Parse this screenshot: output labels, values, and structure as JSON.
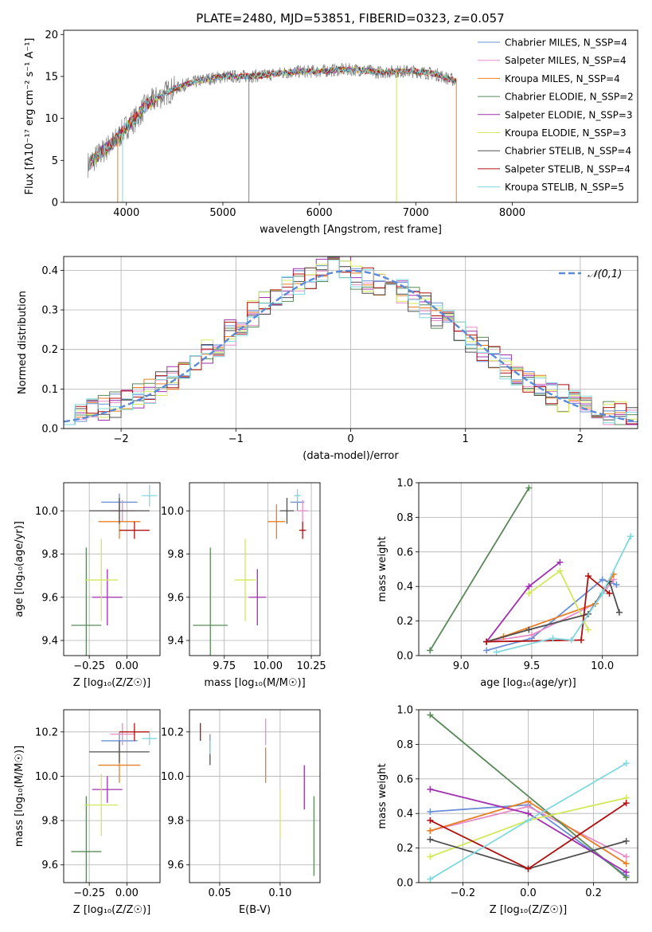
{
  "figure_title": "PLATE=2480, MJD=53851, FIBERID=0323, z=0.057",
  "palette": {
    "Chabrier MILES": "#6b8fd6",
    "Salpeter MILES": "#e88cc8",
    "Kroupa MILES": "#e87f24",
    "Chabrier ELODIE": "#5a8a5a",
    "Salpeter ELODIE": "#a030b0",
    "Kroupa ELODIE": "#d2e85a",
    "Chabrier STELIB": "#505050",
    "Salpeter STELIB": "#b01010",
    "Kroupa STELIB": "#80d8e0",
    "data": "#808080",
    "normal": "#5b8bd8"
  },
  "chart_data": [
    {
      "id": "spectrum",
      "type": "line",
      "title": "PLATE=2480, MJD=53851, FIBERID=0323, z=0.057",
      "xlabel": "wavelength [Angstrom, rest frame]",
      "ylabel": "Flux [fλ10⁻¹⁷ erg cm⁻² s⁻¹ A⁻¹]",
      "xlim": [
        3350,
        9300
      ],
      "ylim": [
        0,
        20.5
      ],
      "xticks": [
        4000,
        5000,
        6000,
        7000,
        8000
      ],
      "yticks": [
        0,
        5,
        10,
        15,
        20
      ],
      "legend_position": "right",
      "legend": [
        "Chabrier MILES, N_SSP=4",
        "Salpeter MILES, N_SSP=4",
        "Kroupa MILES, N_SSP=4",
        "Chabrier ELODIE, N_SSP=2",
        "Salpeter ELODIE, N_SSP=3",
        "Kroupa ELODIE, N_SSP=3",
        "Chabrier STELIB, N_SSP=4",
        "Salpeter STELIB, N_SSP=4",
        "Kroupa STELIB, N_SSP=5"
      ],
      "continuum": {
        "x": [
          3600,
          3700,
          3800,
          3900,
          4000,
          4100,
          4200,
          4400,
          4600,
          4800,
          5000,
          5200,
          5400,
          5600,
          5800,
          6000,
          6200,
          6400,
          6600,
          6800,
          7000,
          7200,
          7400
        ],
        "y": [
          4.5,
          5.5,
          6.5,
          7.5,
          9.0,
          10.0,
          11.5,
          13.0,
          14.0,
          14.6,
          15.0,
          15.0,
          15.1,
          15.4,
          15.6,
          15.6,
          15.8,
          15.8,
          15.5,
          15.6,
          15.6,
          15.3,
          14.5
        ]
      }
    },
    {
      "id": "residuals",
      "type": "line",
      "xlabel": "(data-model)/error",
      "ylabel": "Normed distribution",
      "xlim": [
        -2.5,
        2.5
      ],
      "ylim": [
        0,
        0.435
      ],
      "xticks": [
        -2,
        -1,
        0,
        1,
        2
      ],
      "yticks": [
        0.0,
        0.1,
        0.2,
        0.3,
        0.4
      ],
      "legend": [
        "𝒩(0,1)"
      ],
      "legend_position": "top-right",
      "normal": {
        "mu": 0,
        "sigma": 1
      }
    },
    {
      "id": "age_vs_Z",
      "type": "scatter",
      "xlabel": "Z [log₁₀(Z/Z☉)]",
      "ylabel": "age  [log₁₀(age/yr)]",
      "xlim": [
        -0.42,
        0.22
      ],
      "ylim": [
        9.33,
        10.13
      ],
      "xticks": [
        -0.25,
        0.0
      ],
      "yticks": [
        9.4,
        9.6,
        9.8,
        10.0
      ],
      "points": [
        {
          "model": "Chabrier MILES",
          "x": -0.05,
          "y": 10.04,
          "xerr": 0.12,
          "yerr": 0.04
        },
        {
          "model": "Salpeter MILES",
          "x": -0.03,
          "y": 10.0,
          "xerr": 0.08,
          "yerr": 0.05
        },
        {
          "model": "Kroupa MILES",
          "x": -0.05,
          "y": 9.95,
          "xerr": 0.14,
          "yerr": 0.08
        },
        {
          "model": "Chabrier ELODIE",
          "x": -0.27,
          "y": 9.47,
          "xerr": 0.1,
          "yerr": 0.36
        },
        {
          "model": "Salpeter ELODIE",
          "x": -0.13,
          "y": 9.6,
          "xerr": 0.1,
          "yerr": 0.13
        },
        {
          "model": "Kroupa ELODIE",
          "x": -0.17,
          "y": 9.68,
          "xerr": 0.11,
          "yerr": 0.19
        },
        {
          "model": "Chabrier STELIB",
          "x": -0.05,
          "y": 10.0,
          "xerr": 0.2,
          "yerr": 0.06
        },
        {
          "model": "Salpeter STELIB",
          "x": 0.05,
          "y": 9.91,
          "xerr": 0.1,
          "yerr": 0.04
        },
        {
          "model": "Kroupa STELIB",
          "x": 0.15,
          "y": 10.07,
          "xerr": 0.05,
          "yerr": 0.05
        }
      ]
    },
    {
      "id": "age_vs_mass",
      "type": "scatter",
      "xlabel": "mass [log₁₀(M/M☉)]",
      "xlim": [
        9.55,
        10.3
      ],
      "ylim": [
        9.33,
        10.13
      ],
      "xticks": [
        9.75,
        10.0,
        10.25
      ],
      "yticks": [
        9.4,
        9.6,
        9.8,
        10.0
      ],
      "points": [
        {
          "model": "Chabrier MILES",
          "x": 10.17,
          "y": 10.04,
          "xerr": 0.04,
          "yerr": 0.04
        },
        {
          "model": "Salpeter MILES",
          "x": 10.2,
          "y": 10.0,
          "xerr": 0.03,
          "yerr": 0.05
        },
        {
          "model": "Kroupa MILES",
          "x": 10.05,
          "y": 9.95,
          "xerr": 0.05,
          "yerr": 0.08
        },
        {
          "model": "Chabrier ELODIE",
          "x": 9.67,
          "y": 9.47,
          "xerr": 0.1,
          "yerr": 0.36
        },
        {
          "model": "Salpeter ELODIE",
          "x": 9.94,
          "y": 9.6,
          "xerr": 0.05,
          "yerr": 0.13
        },
        {
          "model": "Kroupa ELODIE",
          "x": 9.87,
          "y": 9.68,
          "xerr": 0.06,
          "yerr": 0.19
        },
        {
          "model": "Chabrier STELIB",
          "x": 10.11,
          "y": 10.0,
          "xerr": 0.04,
          "yerr": 0.06
        },
        {
          "model": "Salpeter STELIB",
          "x": 10.2,
          "y": 9.91,
          "xerr": 0.02,
          "yerr": 0.04
        },
        {
          "model": "Kroupa STELIB",
          "x": 10.17,
          "y": 10.07,
          "xerr": 0.02,
          "yerr": 0.03
        }
      ]
    },
    {
      "id": "weight_vs_age",
      "type": "line",
      "xlabel": "age  [log₁₀(age/yr)]",
      "ylabel": "mass weight",
      "xlim": [
        8.7,
        10.25
      ],
      "ylim": [
        0,
        1.0
      ],
      "xticks": [
        9.0,
        9.5,
        10.0
      ],
      "yticks": [
        0.0,
        0.2,
        0.4,
        0.6,
        0.8,
        1.0
      ],
      "series": [
        {
          "model": "Chabrier MILES",
          "x": [
            9.18,
            9.5,
            10.0,
            10.1
          ],
          "y": [
            0.03,
            0.1,
            0.44,
            0.41
          ]
        },
        {
          "model": "Salpeter MILES",
          "x": [
            9.18,
            9.5,
            9.95,
            10.08
          ],
          "y": [
            0.08,
            0.12,
            0.3,
            0.44
          ]
        },
        {
          "model": "Kroupa MILES",
          "x": [
            9.18,
            9.3,
            9.95,
            10.08
          ],
          "y": [
            0.08,
            0.11,
            0.3,
            0.47
          ]
        },
        {
          "model": "Chabrier ELODIE",
          "x": [
            8.78,
            9.48
          ],
          "y": [
            0.03,
            0.97
          ]
        },
        {
          "model": "Salpeter ELODIE",
          "x": [
            9.18,
            9.48,
            9.7
          ],
          "y": [
            0.08,
            0.4,
            0.54
          ]
        },
        {
          "model": "Kroupa ELODIE",
          "x": [
            9.48,
            9.7,
            9.9
          ],
          "y": [
            0.36,
            0.49,
            0.15
          ]
        },
        {
          "model": "Chabrier STELIB",
          "x": [
            9.18,
            9.48,
            9.9,
            10.05,
            10.12
          ],
          "y": [
            0.08,
            0.15,
            0.24,
            0.43,
            0.25
          ]
        },
        {
          "model": "Salpeter STELIB",
          "x": [
            9.18,
            9.85,
            9.9,
            10.05
          ],
          "y": [
            0.08,
            0.09,
            0.46,
            0.36
          ]
        },
        {
          "model": "Kroupa STELIB",
          "x": [
            9.25,
            9.65,
            9.78,
            10.0,
            10.2
          ],
          "y": [
            0.02,
            0.1,
            0.09,
            0.36,
            0.69
          ]
        }
      ]
    },
    {
      "id": "mass_vs_Z",
      "type": "scatter",
      "xlabel": "Z [log₁₀(Z/Z☉)]",
      "ylabel": "mass [log₁₀(M/M☉)]",
      "xlim": [
        -0.42,
        0.22
      ],
      "ylim": [
        9.52,
        10.3
      ],
      "xticks": [
        -0.25,
        0.0
      ],
      "yticks": [
        9.6,
        9.8,
        10.0,
        10.2
      ],
      "points": [
        {
          "model": "Chabrier MILES",
          "x": -0.05,
          "y": 10.16,
          "xerr": 0.12,
          "yerr": 0.04
        },
        {
          "model": "Salpeter MILES",
          "x": -0.03,
          "y": 10.19,
          "xerr": 0.08,
          "yerr": 0.05
        },
        {
          "model": "Kroupa MILES",
          "x": -0.05,
          "y": 10.05,
          "xerr": 0.14,
          "yerr": 0.08
        },
        {
          "model": "Chabrier ELODIE",
          "x": -0.27,
          "y": 9.66,
          "xerr": 0.1,
          "yerr": 0.25
        },
        {
          "model": "Salpeter ELODIE",
          "x": -0.13,
          "y": 9.94,
          "xerr": 0.1,
          "yerr": 0.06
        },
        {
          "model": "Kroupa ELODIE",
          "x": -0.17,
          "y": 9.87,
          "xerr": 0.11,
          "yerr": 0.14
        },
        {
          "model": "Chabrier STELIB",
          "x": -0.05,
          "y": 10.11,
          "xerr": 0.2,
          "yerr": 0.05
        },
        {
          "model": "Salpeter STELIB",
          "x": 0.05,
          "y": 10.2,
          "xerr": 0.1,
          "yerr": 0.04
        },
        {
          "model": "Kroupa STELIB",
          "x": 0.15,
          "y": 10.17,
          "xerr": 0.05,
          "yerr": 0.03
        }
      ]
    },
    {
      "id": "mass_vs_EBV",
      "type": "scatter",
      "xlabel": "E(B-V)",
      "xlim": [
        0.025,
        0.133
      ],
      "ylim": [
        9.52,
        10.3
      ],
      "xticks": [
        0.05,
        0.1
      ],
      "yticks": [
        9.6,
        9.8,
        10.0,
        10.2
      ],
      "points": [
        {
          "model": "Chabrier MILES",
          "x": 0.042,
          "y": 10.15,
          "xerr": 0,
          "yerr": 0.04
        },
        {
          "model": "Salpeter MILES",
          "x": 0.088,
          "y": 10.2,
          "xerr": 0,
          "yerr": 0.06
        },
        {
          "model": "Kroupa MILES",
          "x": 0.088,
          "y": 10.05,
          "xerr": 0,
          "yerr": 0.08
        },
        {
          "model": "Chabrier ELODIE",
          "x": 0.128,
          "y": 9.73,
          "xerr": 0,
          "yerr": 0.18
        },
        {
          "model": "Salpeter ELODIE",
          "x": 0.12,
          "y": 9.95,
          "xerr": 0,
          "yerr": 0.1
        },
        {
          "model": "Kroupa ELODIE",
          "x": 0.1,
          "y": 9.83,
          "xerr": 0,
          "yerr": 0.11
        },
        {
          "model": "Chabrier STELIB",
          "x": 0.042,
          "y": 10.1,
          "xerr": 0,
          "yerr": 0.05
        },
        {
          "model": "Salpeter STELIB",
          "x": 0.034,
          "y": 10.2,
          "xerr": 0,
          "yerr": 0.04
        },
        {
          "model": "Kroupa STELIB",
          "x": 0.042,
          "y": 10.13,
          "xerr": 0,
          "yerr": 0.03
        }
      ]
    },
    {
      "id": "weight_vs_Z",
      "type": "line",
      "xlabel": "Z [log₁₀(Z/Z☉)]",
      "ylabel": "mass weight",
      "xlim": [
        -0.335,
        0.335
      ],
      "ylim": [
        0,
        1.0
      ],
      "xticks": [
        -0.2,
        0.0,
        0.2
      ],
      "yticks": [
        0.0,
        0.2,
        0.4,
        0.6,
        0.8,
        1.0
      ],
      "series": [
        {
          "model": "Chabrier MILES",
          "x": [
            -0.3,
            0.0,
            0.3
          ],
          "y": [
            0.41,
            0.45,
            0.04
          ]
        },
        {
          "model": "Salpeter MILES",
          "x": [
            -0.3,
            0.0,
            0.3
          ],
          "y": [
            0.3,
            0.44,
            0.15
          ]
        },
        {
          "model": "Kroupa MILES",
          "x": [
            -0.3,
            0.0,
            0.3
          ],
          "y": [
            0.3,
            0.47,
            0.11
          ]
        },
        {
          "model": "Chabrier ELODIE",
          "x": [
            -0.3,
            0.3
          ],
          "y": [
            0.97,
            0.03
          ]
        },
        {
          "model": "Salpeter ELODIE",
          "x": [
            -0.3,
            0.0,
            0.3
          ],
          "y": [
            0.54,
            0.4,
            0.06
          ]
        },
        {
          "model": "Kroupa ELODIE",
          "x": [
            -0.3,
            0.0,
            0.3
          ],
          "y": [
            0.15,
            0.36,
            0.49
          ]
        },
        {
          "model": "Chabrier STELIB",
          "x": [
            -0.3,
            0.0,
            0.3
          ],
          "y": [
            0.25,
            0.08,
            0.24
          ]
        },
        {
          "model": "Salpeter STELIB",
          "x": [
            -0.3,
            0.0,
            0.3
          ],
          "y": [
            0.36,
            0.08,
            0.46
          ]
        },
        {
          "model": "Kroupa STELIB",
          "x": [
            -0.3,
            0.0,
            0.3
          ],
          "y": [
            0.02,
            0.36,
            0.69
          ]
        }
      ]
    }
  ]
}
